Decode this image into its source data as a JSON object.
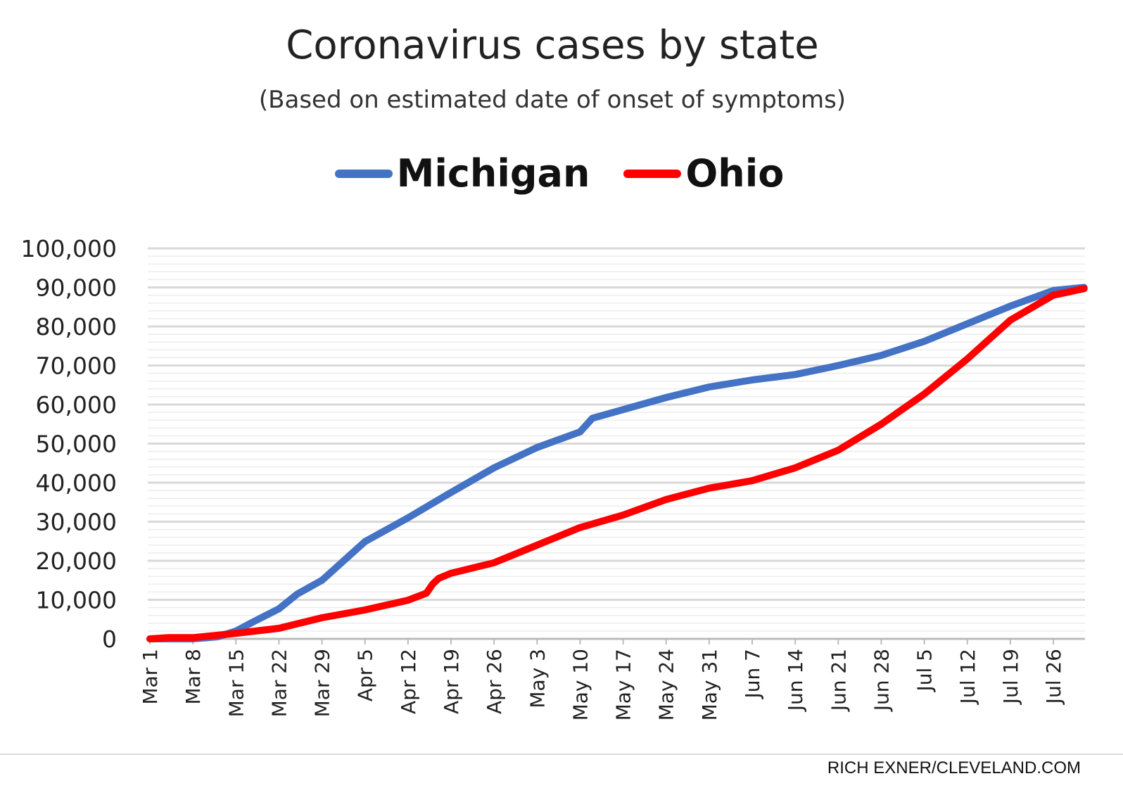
{
  "chart_data": {
    "type": "line",
    "title": "Coronavirus cases by state",
    "subtitle": "(Based on estimated date of onset of symptoms)",
    "xlabel": "",
    "ylabel": "",
    "ylim": [
      0,
      100000
    ],
    "yticks": [
      0,
      10000,
      20000,
      30000,
      40000,
      50000,
      60000,
      70000,
      80000,
      90000,
      100000
    ],
    "ytick_labels": [
      "0",
      "10,000",
      "20,000",
      "30,000",
      "40,000",
      "50,000",
      "60,000",
      "70,000",
      "80,000",
      "90,000",
      "100,000"
    ],
    "minor_grid_step": 2000,
    "grid": true,
    "legend_position": "top-center",
    "x_tick_labels": [
      "Mar 1",
      "Mar 8",
      "Mar 15",
      "Mar 22",
      "Mar 29",
      "Apr 5",
      "Apr 12",
      "Apr 19",
      "Apr 26",
      "May 3",
      "May 10",
      "May 17",
      "May 24",
      "May 31",
      "Jun 7",
      "Jun 14",
      "Jun 21",
      "Jun 28",
      "Jul 5",
      "Jul 12",
      "Jul 19",
      "Jul 26"
    ],
    "x_tick_days": [
      0,
      7,
      14,
      21,
      28,
      35,
      42,
      49,
      56,
      63,
      70,
      77,
      84,
      91,
      98,
      105,
      112,
      119,
      126,
      133,
      140,
      147
    ],
    "x_days_range": [
      0,
      152
    ],
    "series": [
      {
        "name": "Michigan",
        "color": "#4472C4",
        "days": [
          0,
          7,
          11,
          14,
          17,
          21,
          24,
          28,
          35,
          42,
          49,
          56,
          63,
          70,
          72,
          77,
          84,
          91,
          98,
          105,
          112,
          119,
          126,
          133,
          140,
          147,
          152
        ],
        "values": [
          0,
          0,
          500,
          2000,
          4500,
          7700,
          11500,
          15000,
          24900,
          31000,
          37500,
          43800,
          49000,
          53000,
          56500,
          58700,
          61800,
          64500,
          66300,
          67700,
          70000,
          72600,
          76200,
          80700,
          85200,
          89200,
          90000
        ]
      },
      {
        "name": "Ohio",
        "color": "#FF0000",
        "days": [
          0,
          3,
          7,
          14,
          21,
          28,
          35,
          42,
          45,
          46,
          47,
          49,
          56,
          63,
          70,
          77,
          84,
          91,
          98,
          105,
          112,
          119,
          126,
          133,
          140,
          147,
          152
        ],
        "values": [
          0,
          300,
          300,
          1400,
          2700,
          5400,
          7400,
          9900,
          11700,
          14000,
          15500,
          16800,
          19500,
          24000,
          28500,
          31700,
          35700,
          38600,
          40500,
          43800,
          48300,
          55000,
          62700,
          71700,
          81600,
          88000,
          89700
        ]
      }
    ]
  },
  "credit": "RICH EXNER/CLEVELAND.COM"
}
